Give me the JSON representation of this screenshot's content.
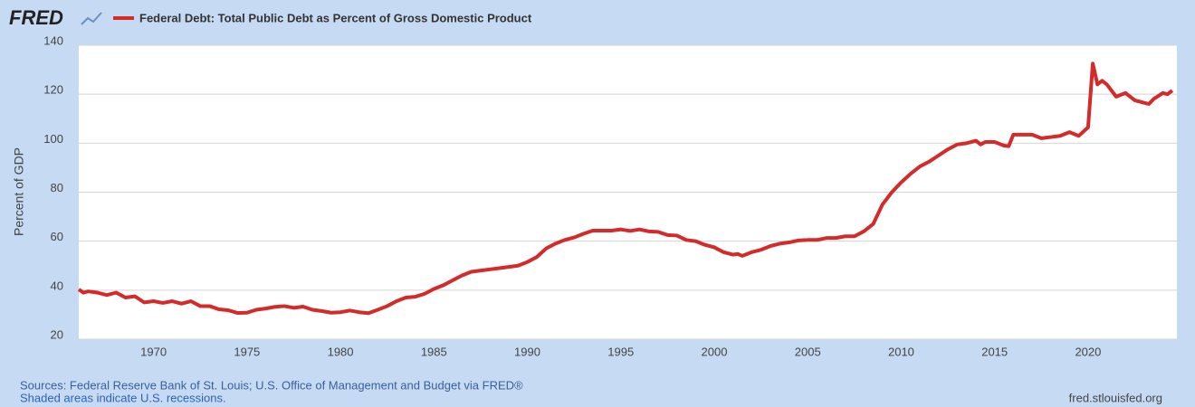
{
  "logo": "FRED",
  "chart_data": {
    "type": "line",
    "y_label": "Percent of GDP",
    "x": [
      1966,
      1966.25,
      1966.5,
      1967,
      1967.5,
      1968,
      1968.5,
      1969,
      1969.5,
      1970,
      1970.5,
      1971,
      1971.5,
      1972,
      1972.5,
      1973,
      1973.5,
      1974,
      1974.5,
      1975,
      1975.5,
      1976,
      1976.5,
      1977,
      1977.5,
      1978,
      1978.5,
      1979,
      1979.5,
      1980,
      1980.5,
      1981,
      1981.5,
      1982,
      1982.5,
      1983,
      1983.5,
      1984,
      1984.5,
      1985,
      1985.5,
      1986,
      1986.5,
      1987,
      1987.5,
      1988,
      1988.5,
      1989,
      1989.5,
      1990,
      1990.5,
      1991,
      1991.5,
      1992,
      1992.5,
      1993,
      1993.5,
      1994,
      1994.5,
      1995,
      1995.5,
      1996,
      1996.5,
      1997,
      1997.5,
      1998,
      1998.5,
      1999,
      1999.5,
      2000,
      2000.5,
      2001,
      2001.25,
      2001.5,
      2002,
      2002.5,
      2003,
      2003.5,
      2004,
      2004.5,
      2005,
      2005.5,
      2006,
      2006.5,
      2007,
      2007.5,
      2008,
      2008.5,
      2009,
      2009.5,
      2010,
      2010.5,
      2011,
      2011.5,
      2012,
      2012.5,
      2013,
      2013.5,
      2014,
      2014.25,
      2014.5,
      2015,
      2015.5,
      2015.75,
      2016,
      2016.5,
      2017,
      2017.5,
      2018,
      2018.5,
      2019,
      2019.5,
      2020,
      2020.25,
      2020.5,
      2020.75,
      2021,
      2021.5,
      2022,
      2022.5,
      2023,
      2023.25,
      2023.5,
      2024,
      2024.25,
      2024.5
    ],
    "series": [
      {
        "name": "Federal Debt: Total Public Debt as Percent of Gross Domestic Product",
        "color": "#d42a2a",
        "values": [
          40.3,
          39,
          39.5,
          39,
          38,
          39,
          37,
          37.5,
          35,
          35.5,
          34.8,
          35.5,
          34.5,
          35.5,
          33.5,
          33.5,
          32.2,
          31.8,
          30.7,
          30.8,
          32,
          32.5,
          33.2,
          33.5,
          32.8,
          33.3,
          32,
          31.5,
          30.8,
          31,
          31.7,
          31,
          30.6,
          32,
          33.5,
          35.5,
          37,
          37.3,
          38.5,
          40.5,
          42,
          44,
          46,
          47.5,
          48,
          48.5,
          49,
          49.5,
          50,
          51.5,
          53.5,
          57,
          59,
          60.5,
          61.5,
          63,
          64.3,
          64.3,
          64.3,
          64.8,
          64.2,
          64.8,
          64,
          63.8,
          62.5,
          62.3,
          60.5,
          60,
          58.5,
          57.5,
          55.5,
          54.5,
          54.8,
          54,
          55.5,
          56.5,
          58,
          59,
          59.5,
          60.3,
          60.5,
          60.5,
          61.3,
          61.3,
          62,
          62,
          64,
          67,
          75,
          80,
          84,
          87.5,
          90.5,
          92.5,
          95,
          97.5,
          99.5,
          100,
          101,
          99.5,
          100.5,
          100.5,
          99,
          98.8,
          103.5,
          103.5,
          103.5,
          102,
          102.5,
          103,
          104.5,
          103,
          106.5,
          132.5,
          124,
          125.5,
          124,
          119,
          120.5,
          117.5,
          116.5,
          116,
          118,
          120.5,
          120,
          121.5
        ]
      }
    ],
    "xlim": [
      1966,
      2024.75
    ],
    "xticks": [
      1970,
      1975,
      1980,
      1985,
      1990,
      1995,
      2000,
      2005,
      2010,
      2015,
      2020
    ],
    "ylim": [
      20,
      140
    ],
    "yticks": [
      20,
      40,
      60,
      80,
      100,
      120,
      140
    ],
    "grid": true
  },
  "footer": {
    "source": "Sources: Federal Reserve Bank of St. Louis; U.S. Office of Management and Budget via FRED®",
    "note": "Shaded areas indicate U.S. recessions.",
    "url": "fred.stlouisfed.org"
  }
}
